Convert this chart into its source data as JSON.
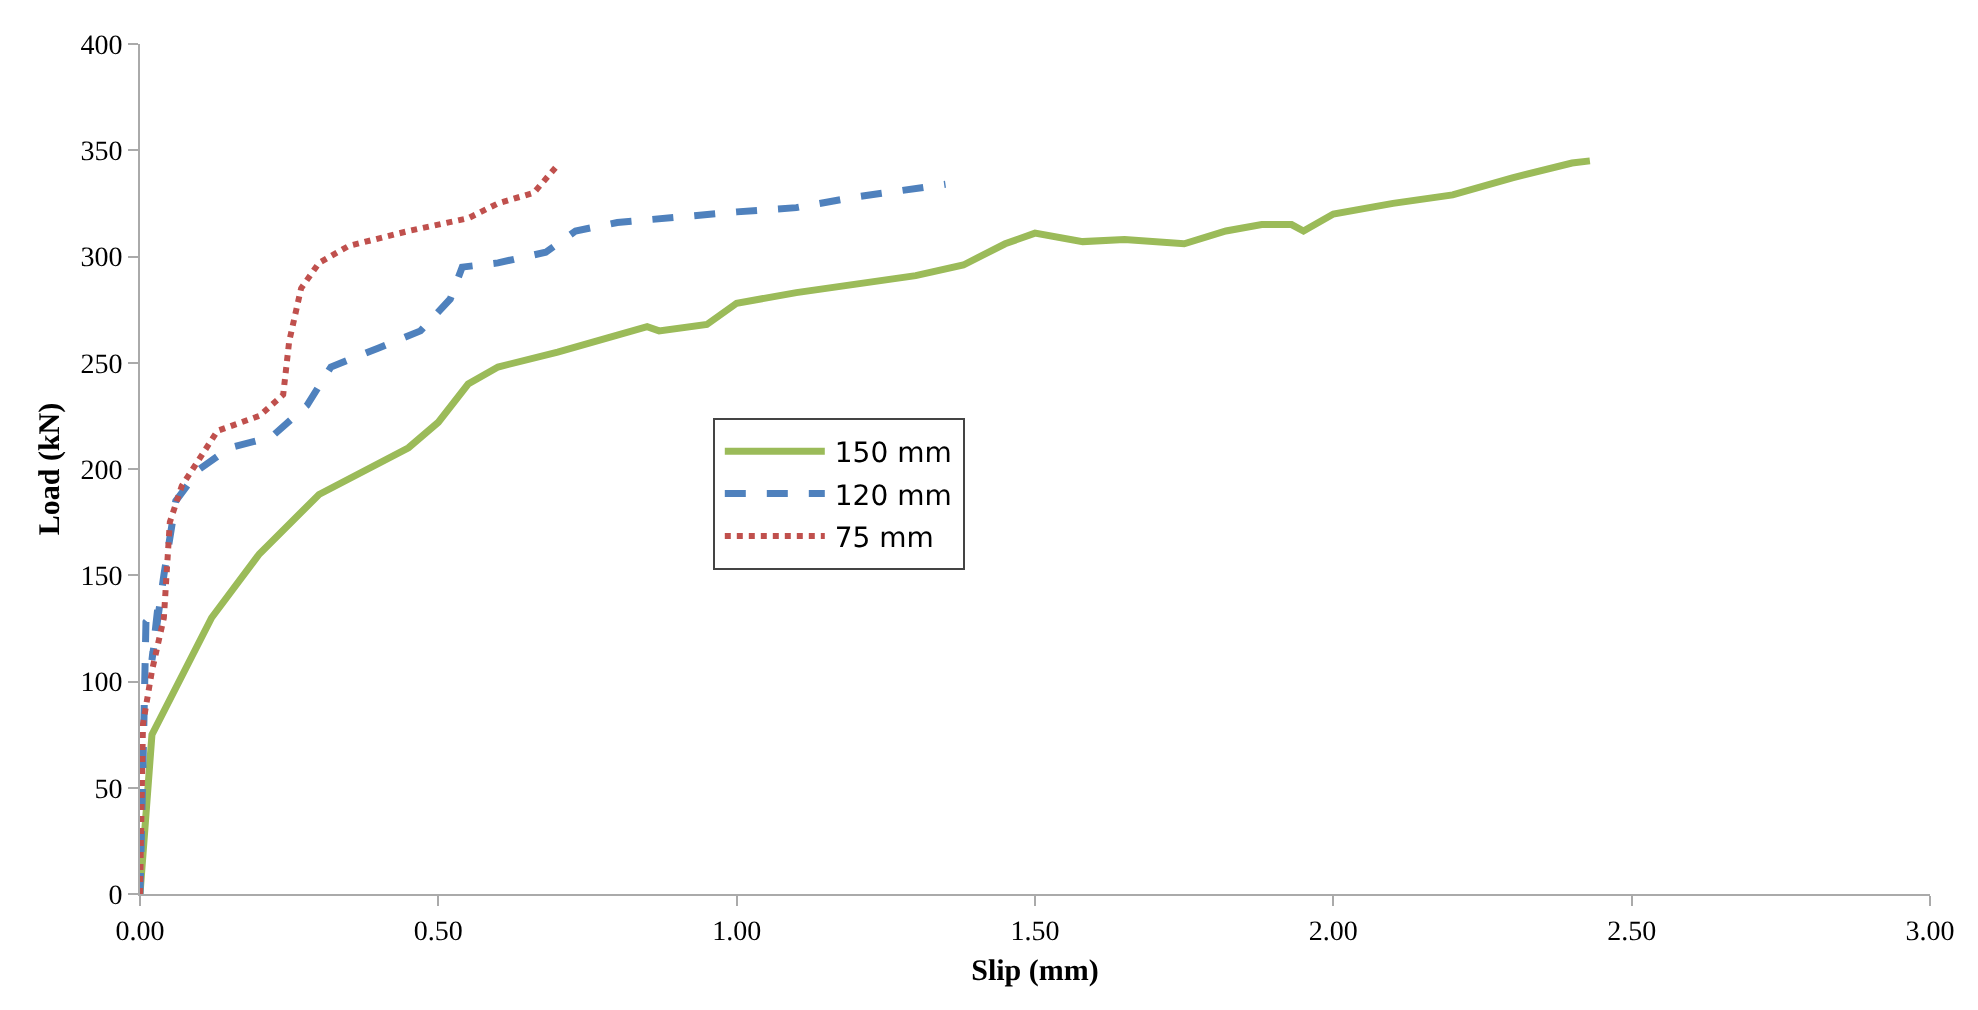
{
  "chart_data": {
    "type": "line",
    "xlabel": "Slip (mm)",
    "ylabel": "Load (kN)",
    "xlim": [
      0,
      3
    ],
    "xticks": [
      {
        "value": 0,
        "label": "0.00"
      },
      {
        "value": 0.5,
        "label": "0.50"
      },
      {
        "value": 1,
        "label": "1.00"
      },
      {
        "value": 1.5,
        "label": "1.50"
      },
      {
        "value": 2,
        "label": "2.00"
      },
      {
        "value": 2.5,
        "label": "2.50"
      },
      {
        "value": 3,
        "label": "3.00"
      }
    ],
    "ylim": [
      0,
      400
    ],
    "yticks": [
      0,
      50,
      100,
      150,
      200,
      250,
      300,
      350,
      400
    ],
    "legend": "center",
    "marker": "none",
    "series": [
      {
        "name": "150 mm",
        "color": "#9bbb59",
        "line_style": "solid",
        "x": [
          0,
          0.02,
          0.12,
          0.2,
          0.3,
          0.45,
          0.5,
          0.55,
          0.6,
          0.7,
          0.8,
          0.85,
          0.87,
          0.95,
          1.0,
          1.1,
          1.2,
          1.3,
          1.38,
          1.45,
          1.5,
          1.58,
          1.65,
          1.75,
          1.82,
          1.88,
          1.93,
          1.95,
          2.0,
          2.1,
          2.2,
          2.3,
          2.4,
          2.43
        ],
        "values": [
          0,
          75,
          130,
          160,
          188,
          210,
          222,
          240,
          248,
          255,
          263,
          267,
          265,
          268,
          278,
          283,
          287,
          291,
          296,
          306,
          311,
          307,
          308,
          306,
          312,
          315,
          315,
          312,
          320,
          325,
          329,
          337,
          344,
          345
        ]
      },
      {
        "name": "120 mm",
        "color": "#4f81bd",
        "line_style": "dashed",
        "x": [
          0,
          0.005,
          0.01,
          0.03,
          0.02,
          0.04,
          0.06,
          0.1,
          0.15,
          0.22,
          0.28,
          0.32,
          0.4,
          0.47,
          0.52,
          0.54,
          0.6,
          0.68,
          0.73,
          0.8,
          1.0,
          1.1,
          1.2,
          1.35
        ],
        "values": [
          0,
          60,
          128,
          135,
          110,
          150,
          185,
          200,
          210,
          215,
          230,
          248,
          257,
          265,
          280,
          295,
          297,
          302,
          312,
          316,
          321,
          323,
          328,
          334
        ]
      },
      {
        "name": "75 mm",
        "color": "#c0504d",
        "line_style": "dotted",
        "x": [
          0,
          0.005,
          0.02,
          0.04,
          0.05,
          0.07,
          0.1,
          0.13,
          0.2,
          0.24,
          0.25,
          0.27,
          0.3,
          0.35,
          0.45,
          0.55,
          0.6,
          0.66,
          0.7
        ],
        "values": [
          0,
          80,
          105,
          130,
          175,
          192,
          205,
          218,
          225,
          235,
          260,
          285,
          297,
          305,
          312,
          318,
          325,
          330,
          343
        ]
      }
    ]
  }
}
